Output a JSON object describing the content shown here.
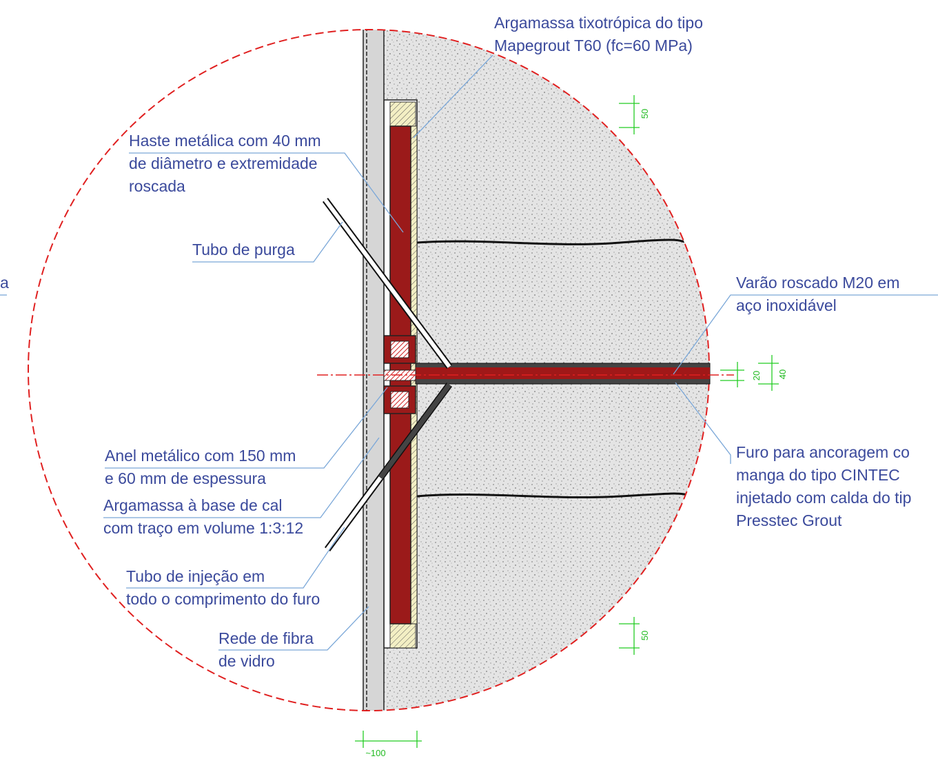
{
  "labels": [
    {
      "lines": [
        "Argamassa tixotrópica do tipo",
        "Mapegrout T60 (fc=60 MPa)"
      ]
    },
    {
      "lines": [
        "Haste metálica com 40 mm",
        "de diâmetro e extremidade",
        "roscada"
      ]
    },
    {
      "lines": [
        "Tubo de purga"
      ]
    },
    {
      "lines": [
        "a"
      ]
    },
    {
      "lines": [
        "Varão roscado M20 em",
        "aço inoxidável"
      ]
    },
    {
      "lines": [
        "Furo para ancoragem co",
        "manga do tipo CINTEC",
        "injetado com calda do tip",
        "Presstec Grout"
      ]
    },
    {
      "lines": [
        "Anel metálico com 150 mm",
        "e 60 mm de espessura"
      ]
    },
    {
      "lines": [
        "Argamassa à base de cal",
        "com traço em volume 1:3:12"
      ]
    },
    {
      "lines": [
        "Tubo de injeção em",
        "todo o comprimento do furo"
      ]
    },
    {
      "lines": [
        "Rede de fibra",
        "de vidro"
      ]
    }
  ],
  "dimensions": [
    "50",
    "50",
    "20",
    "40",
    "~100"
  ]
}
